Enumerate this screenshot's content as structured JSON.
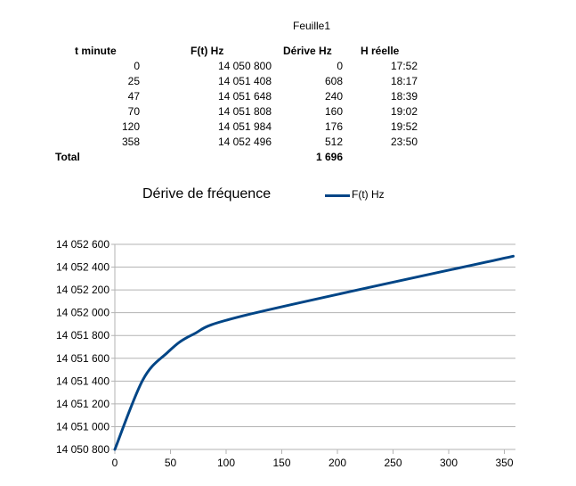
{
  "sheet_title": "Feuille1",
  "table": {
    "headers": [
      "t minute",
      "F(t) Hz",
      "Dérive Hz",
      "H réelle"
    ],
    "rows": [
      [
        "0",
        "14 050 800",
        "0",
        "17:52"
      ],
      [
        "25",
        "14 051 408",
        "608",
        "18:17"
      ],
      [
        "47",
        "14 051 648",
        "240",
        "18:39"
      ],
      [
        "70",
        "14 051 808",
        "160",
        "19:02"
      ],
      [
        "120",
        "14 051 984",
        "176",
        "19:52"
      ],
      [
        "358",
        "14 052 496",
        "512",
        "23:50"
      ]
    ],
    "total_label": "Total",
    "total_value": "1 696"
  },
  "chart_data": {
    "type": "line",
    "title": "Dérive de fréquence",
    "xlabel": "",
    "ylabel": "",
    "xlim": [
      0,
      360
    ],
    "ylim": [
      14050800,
      14052600
    ],
    "x_ticks": [
      "0",
      "50",
      "100",
      "150",
      "200",
      "250",
      "300",
      "350"
    ],
    "y_ticks": [
      "14 050 800",
      "14 051 000",
      "14 051 200",
      "14 051 400",
      "14 051 600",
      "14 051 800",
      "14 052 000",
      "14 052 200",
      "14 052 400",
      "14 052 600"
    ],
    "grid": true,
    "legend": "top-right",
    "series": [
      {
        "name": "F(t) Hz",
        "color": "#004586",
        "x": [
          0,
          25,
          47,
          70,
          120,
          358
        ],
        "y": [
          14050800,
          14051408,
          14051648,
          14051808,
          14051984,
          14052496
        ]
      }
    ]
  }
}
